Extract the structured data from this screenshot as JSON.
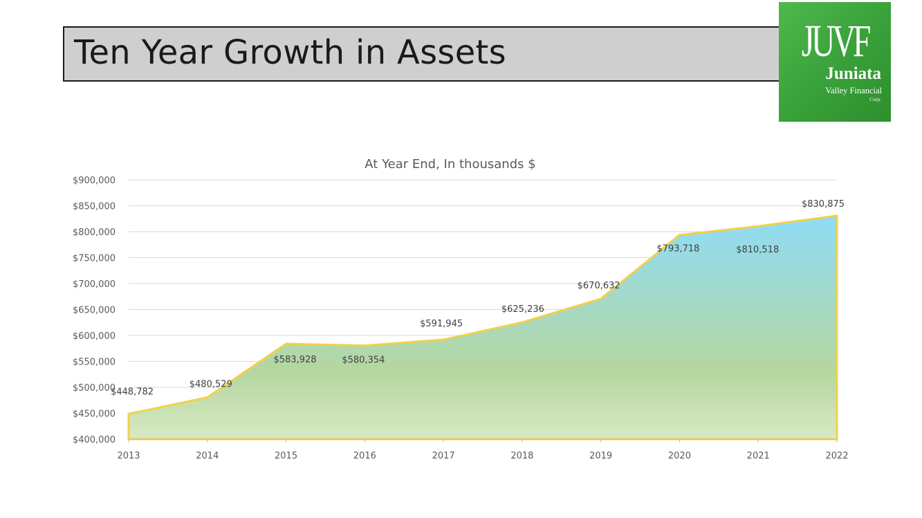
{
  "slide": {
    "title": "Ten Year Growth in Assets"
  },
  "logo": {
    "mark": "JUVF",
    "name": "Juniata",
    "subtitle": "Valley Financial",
    "suffix": "Corp.",
    "color": "#3aa23a"
  },
  "chart_data": {
    "type": "area",
    "title": "At Year End, In thousands $",
    "xlabel": "",
    "ylabel": "",
    "x": [
      "2013",
      "2014",
      "2015",
      "2016",
      "2017",
      "2018",
      "2019",
      "2020",
      "2021",
      "2022"
    ],
    "values": [
      448782,
      480529,
      583928,
      580354,
      591945,
      625236,
      670632,
      793718,
      810518,
      830875
    ],
    "data_labels": [
      "$448,782",
      "$480,529",
      "$583,928",
      "$580,354",
      "$591,945",
      "$625,236",
      "$670,632",
      "$793,718",
      "$810,518",
      "$830,875"
    ],
    "ylim": [
      400000,
      900000
    ],
    "yticks": [
      400000,
      450000,
      500000,
      550000,
      600000,
      650000,
      700000,
      750000,
      800000,
      850000,
      900000
    ],
    "ytick_labels": [
      "$400,000",
      "$450,000",
      "$500,000",
      "$550,000",
      "$600,000",
      "$650,000",
      "$700,000",
      "$750,000",
      "$800,000",
      "$850,000",
      "$900,000"
    ],
    "grid": true,
    "legend": "none",
    "colors": {
      "line": "#f2d14a",
      "fill_top": "#8fdcf7",
      "fill_mid": "#b5d79f",
      "fill_bottom": "#d8e9c4",
      "grid": "#d9d9d9",
      "text": "#595959"
    }
  }
}
